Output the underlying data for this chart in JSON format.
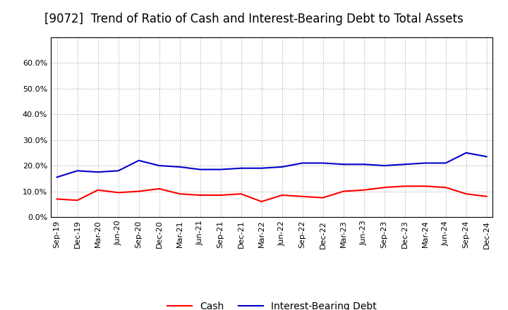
{
  "title": "[9072]  Trend of Ratio of Cash and Interest-Bearing Debt to Total Assets",
  "x_labels": [
    "Sep-19",
    "Dec-19",
    "Mar-20",
    "Jun-20",
    "Sep-20",
    "Dec-20",
    "Mar-21",
    "Jun-21",
    "Sep-21",
    "Dec-21",
    "Mar-22",
    "Jun-22",
    "Sep-22",
    "Dec-22",
    "Mar-23",
    "Jun-23",
    "Sep-23",
    "Dec-23",
    "Mar-24",
    "Jun-24",
    "Sep-24",
    "Dec-24"
  ],
  "cash": [
    7.0,
    6.5,
    10.5,
    9.5,
    10.0,
    11.0,
    9.0,
    8.5,
    8.5,
    9.0,
    6.0,
    8.5,
    8.0,
    7.5,
    10.0,
    10.5,
    11.5,
    12.0,
    12.0,
    11.5,
    9.0,
    8.0
  ],
  "interest_bearing_debt": [
    15.5,
    18.0,
    17.5,
    18.0,
    22.0,
    20.0,
    19.5,
    18.5,
    18.5,
    19.0,
    19.0,
    19.5,
    21.0,
    21.0,
    20.5,
    20.5,
    20.0,
    20.5,
    21.0,
    21.0,
    25.0,
    23.5
  ],
  "cash_color": "#ff0000",
  "debt_color": "#0000cc",
  "ylim": [
    0,
    70
  ],
  "yticks": [
    0.0,
    10.0,
    20.0,
    30.0,
    40.0,
    50.0,
    60.0
  ],
  "bg_color": "#ffffff",
  "plot_bg_color": "#ffffff",
  "grid_color": "#aaaaaa",
  "legend_cash": "Cash",
  "legend_debt": "Interest-Bearing Debt",
  "title_fontsize": 12,
  "tick_fontsize": 8,
  "legend_fontsize": 10,
  "line_width": 1.5
}
